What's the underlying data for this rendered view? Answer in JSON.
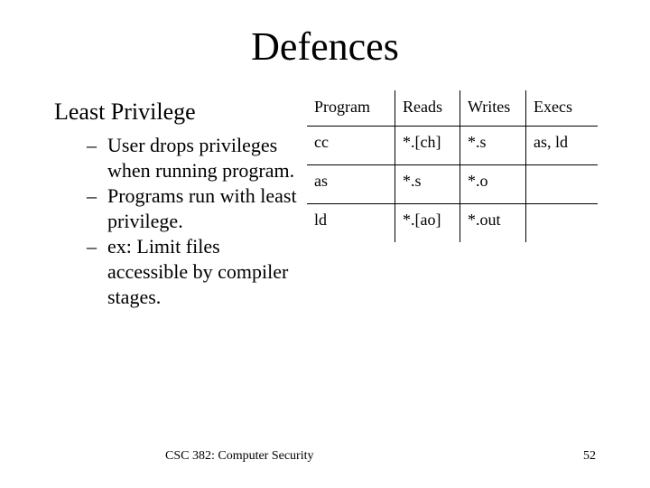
{
  "slide": {
    "title": "Defences",
    "main_point": "Least Privilege",
    "sub_points": [
      "User drops privileges when running program.",
      "Programs run with least privilege.",
      "ex:  Limit files accessible by compiler stages."
    ],
    "dash": "–"
  },
  "table": {
    "headers": [
      "Program",
      "Reads",
      "Writes",
      "Execs"
    ],
    "rows": [
      [
        "cc",
        "*.[ch]",
        "*.s",
        "as, ld"
      ],
      [
        "as",
        "*.s",
        "*.o",
        ""
      ],
      [
        "ld",
        "*.[ao]",
        "*.out",
        ""
      ]
    ]
  },
  "footer": {
    "course": "CSC 382: Computer Security",
    "page_number": "52"
  }
}
